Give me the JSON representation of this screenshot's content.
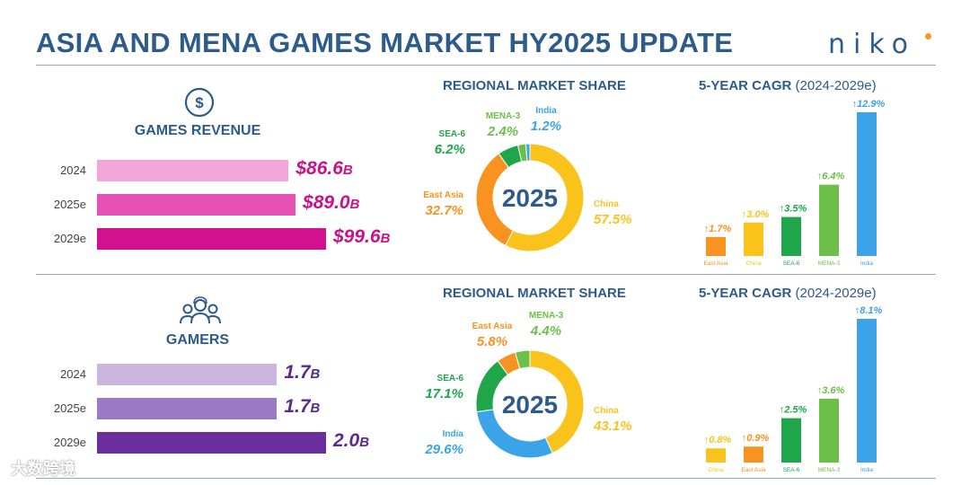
{
  "header": {
    "title": "ASIA AND MENA GAMES MARKET HY2025 UPDATE",
    "logo": "niko"
  },
  "sections": [
    {
      "metric_label": "GAMES REVENUE",
      "icon": "dollar-coin-icon",
      "share_heading": "REGIONAL MARKET SHARE",
      "cagr_heading": "5-YEAR CAGR",
      "cagr_range": "(2024-2029e)"
    },
    {
      "metric_label": "GAMERS",
      "icon": "people-group-icon",
      "share_heading": "REGIONAL MARKET SHARE",
      "cagr_heading": "5-YEAR CAGR",
      "cagr_range": "(2024-2029e)"
    }
  ],
  "chart_data": [
    {
      "type": "bar",
      "orientation": "horizontal",
      "categories": [
        "2024",
        "2025e",
        "2029e"
      ],
      "values": [
        86.6,
        89.0,
        99.6
      ],
      "labels": [
        "$86.6",
        "$89.0",
        "$99.6"
      ],
      "unit": "B",
      "colors": [
        "#f3a6d8",
        "#e64fb4",
        "#d3118f"
      ],
      "value_color": "#c81288"
    },
    {
      "type": "pie",
      "center_label": "2025",
      "slices": [
        {
          "name": "China",
          "value": 57.5,
          "label": "57.5%",
          "color": "#f9c31b"
        },
        {
          "name": "East Asia",
          "value": 32.7,
          "label": "32.7%",
          "color": "#f7931e"
        },
        {
          "name": "SEA-6",
          "value": 6.2,
          "label": "6.2%",
          "color": "#1fa64a"
        },
        {
          "name": "MENA-3",
          "value": 2.4,
          "label": "2.4%",
          "color": "#6cc04a"
        },
        {
          "name": "India",
          "value": 1.2,
          "label": "1.2%",
          "color": "#3ba3e8"
        }
      ]
    },
    {
      "type": "bar",
      "categories": [
        "East Asia",
        "China",
        "SEA-6",
        "MENA-3",
        "India"
      ],
      "values": [
        1.7,
        3.0,
        3.5,
        6.4,
        12.9
      ],
      "labels": [
        "1.7%",
        "3.0%",
        "3.5%",
        "6.4%",
        "12.9%"
      ],
      "colors": [
        "#f7931e",
        "#f9c31b",
        "#1fa64a",
        "#6cc04a",
        "#3ba3e8"
      ]
    },
    {
      "type": "bar",
      "orientation": "horizontal",
      "categories": [
        "2024",
        "2025e",
        "2029e"
      ],
      "values": [
        1.7,
        1.7,
        2.0
      ],
      "labels": [
        "1.7",
        "1.7",
        "2.0"
      ],
      "unit": "B",
      "colors": [
        "#c9b5de",
        "#9b79c4",
        "#6a2f9c"
      ],
      "value_color": "#5b2a8c"
    },
    {
      "type": "pie",
      "center_label": "2025",
      "slices": [
        {
          "name": "China",
          "value": 43.1,
          "label": "43.1%",
          "color": "#f9c31b"
        },
        {
          "name": "India",
          "value": 29.6,
          "label": "29.6%",
          "color": "#3ba3e8"
        },
        {
          "name": "SEA-6",
          "value": 17.1,
          "label": "17.1%",
          "color": "#1fa64a"
        },
        {
          "name": "East Asia",
          "value": 5.8,
          "label": "5.8%",
          "color": "#f7931e"
        },
        {
          "name": "MENA-3",
          "value": 4.4,
          "label": "4.4%",
          "color": "#6cc04a"
        }
      ]
    },
    {
      "type": "bar",
      "categories": [
        "China",
        "East Asia",
        "SEA-6",
        "MENA-3",
        "India"
      ],
      "values": [
        0.8,
        0.9,
        2.5,
        3.6,
        8.1
      ],
      "labels": [
        "0.8%",
        "0.9%",
        "2.5%",
        "3.6%",
        "8.1%"
      ],
      "colors": [
        "#f9c31b",
        "#f7931e",
        "#1fa64a",
        "#6cc04a",
        "#3ba3e8"
      ]
    }
  ],
  "watermark": "大数跨境"
}
